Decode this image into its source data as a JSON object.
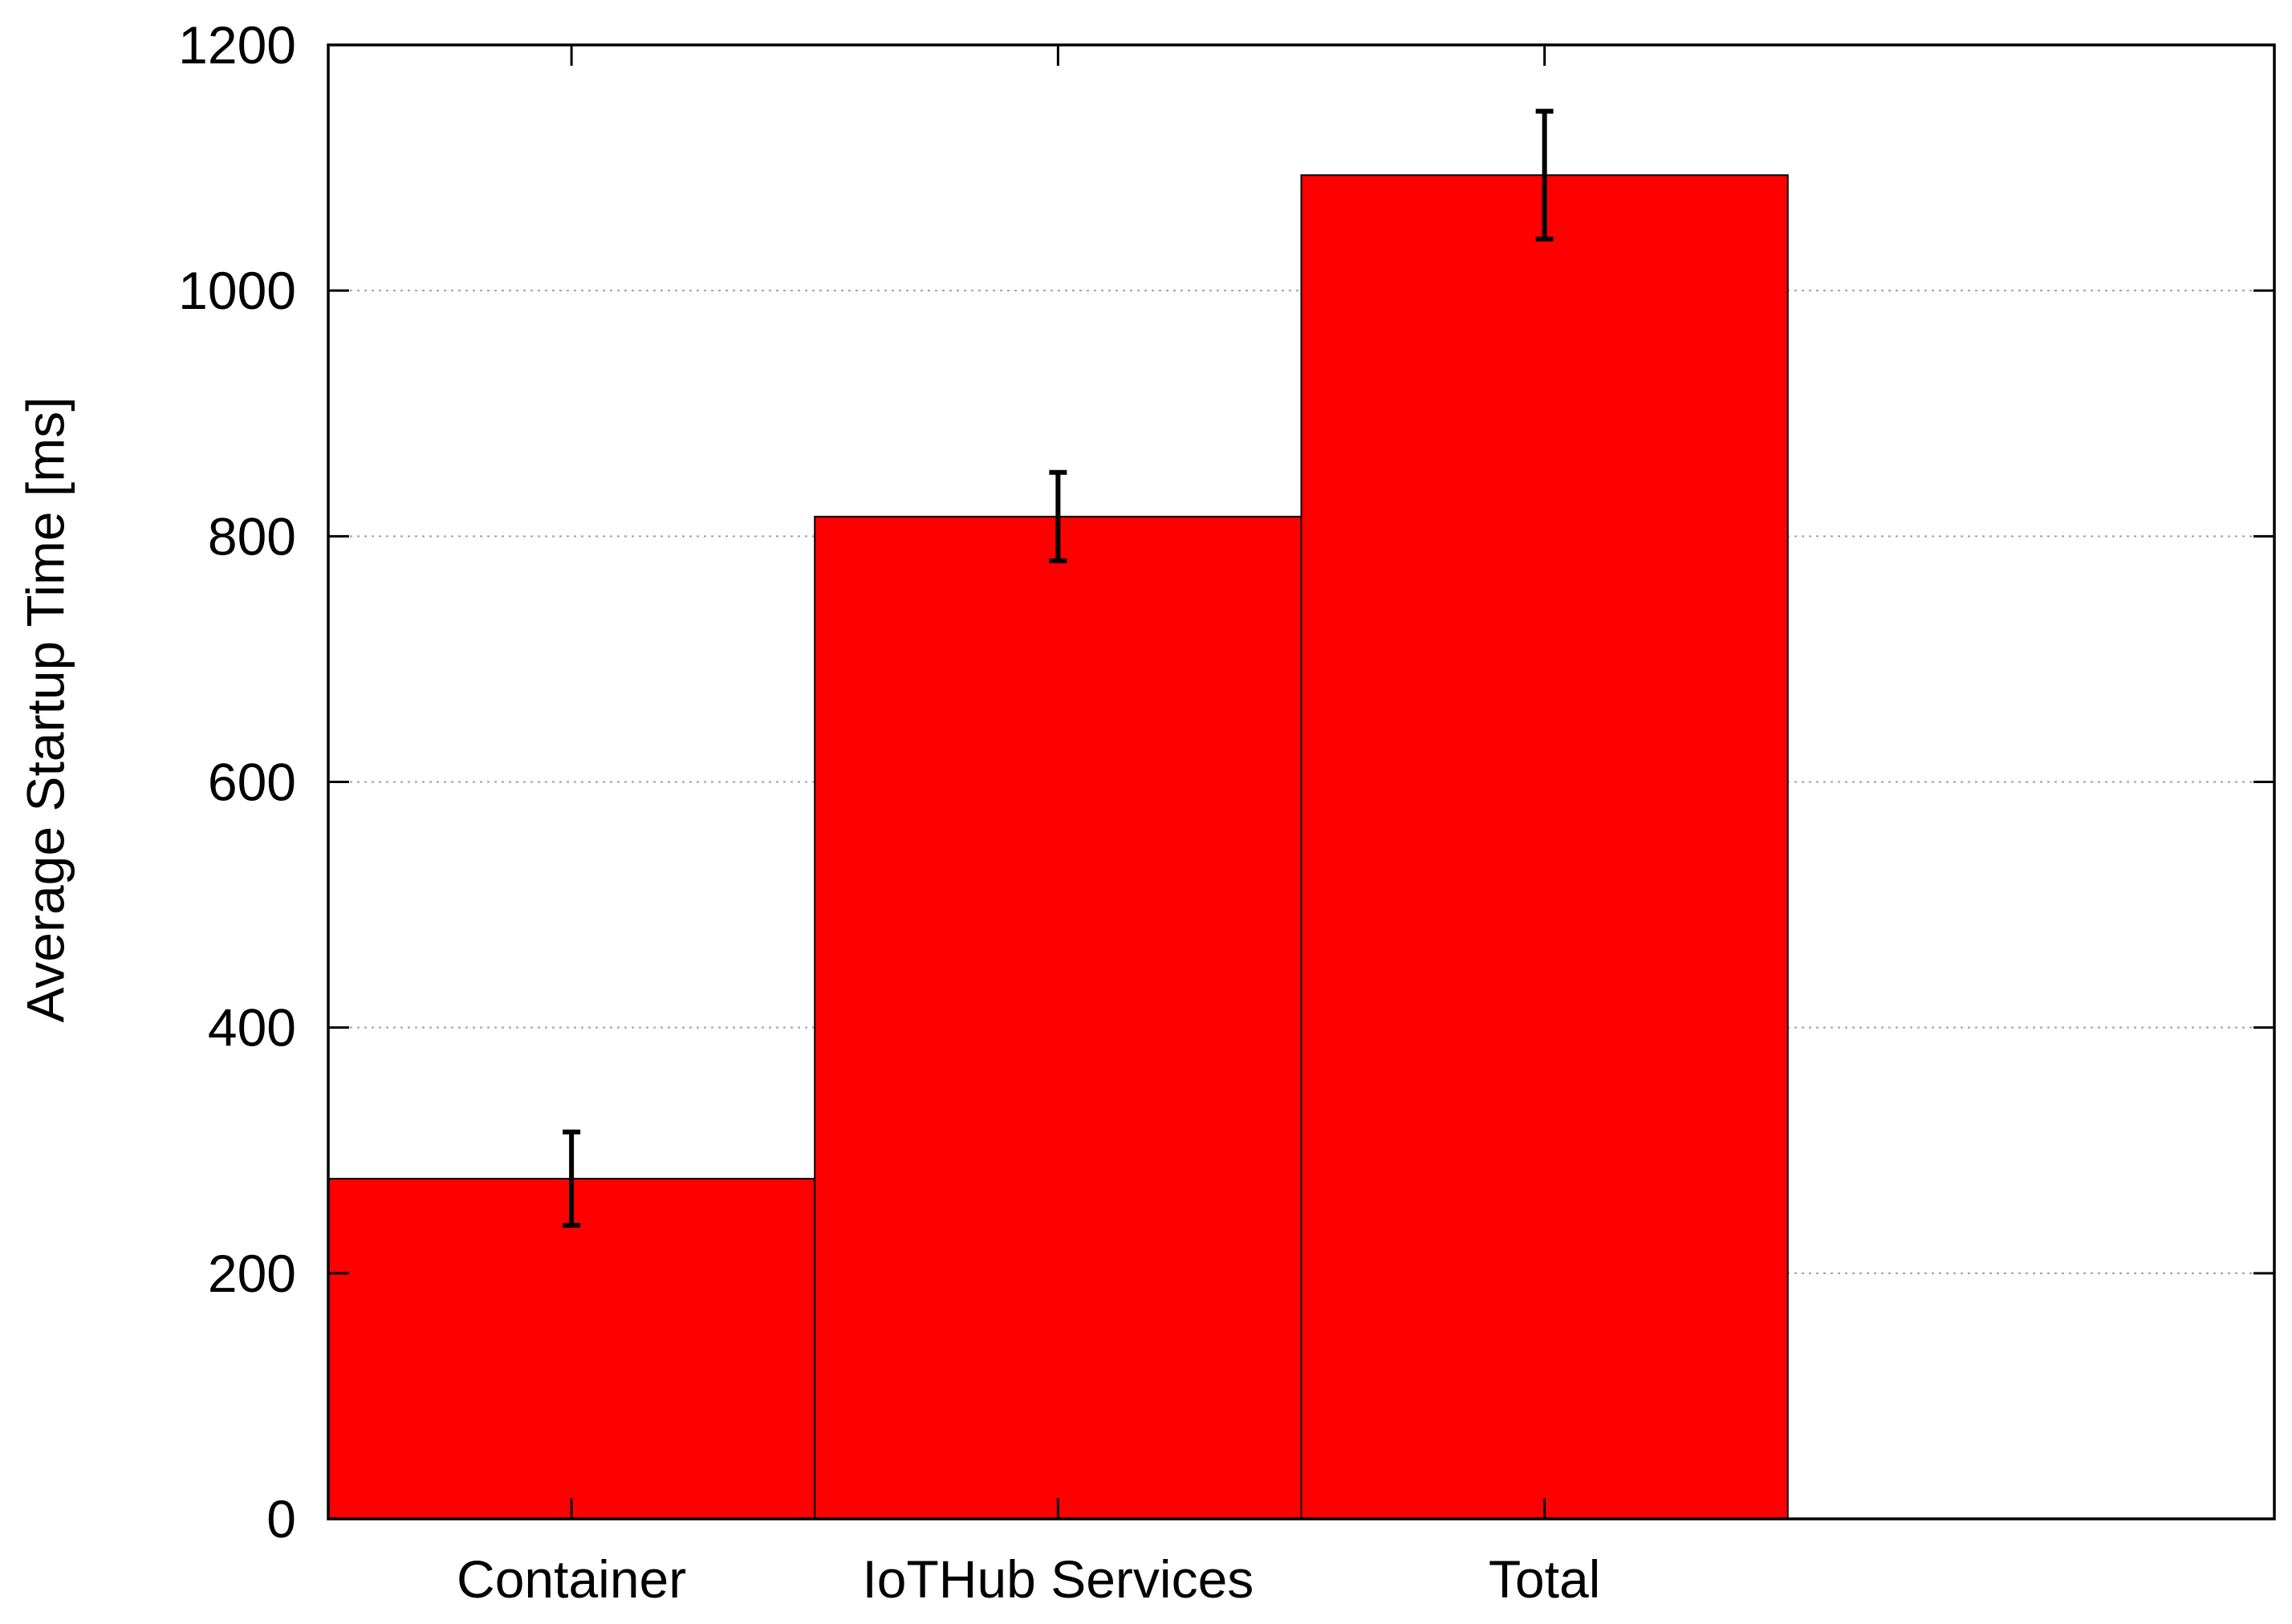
{
  "chart_data": {
    "type": "bar",
    "title": "",
    "xlabel": "",
    "ylabel": "Average Startup Time [ms]",
    "categories": [
      "Container",
      "IoTHub Services",
      "Total"
    ],
    "series": [
      {
        "values": [
          277,
          816,
          1094
        ],
        "error_low": [
          239,
          780,
          1042
        ],
        "error_high": [
          315,
          852,
          1146
        ]
      }
    ],
    "ylim": [
      0,
      1200
    ],
    "yticks": [
      0,
      200,
      400,
      600,
      800,
      1000,
      1200
    ],
    "ytick_labels": [
      "0",
      "200",
      "400",
      "600",
      "800",
      "1000",
      "1200"
    ],
    "xlim": [
      -0.5,
      3.5
    ],
    "grid": "y-dotted",
    "legend": "none",
    "colors": {
      "bar": "#ff0000",
      "bar_edge": "#000000",
      "error_bar": "#000000",
      "grid": "#a0a0a0",
      "frame": "#000000"
    }
  }
}
